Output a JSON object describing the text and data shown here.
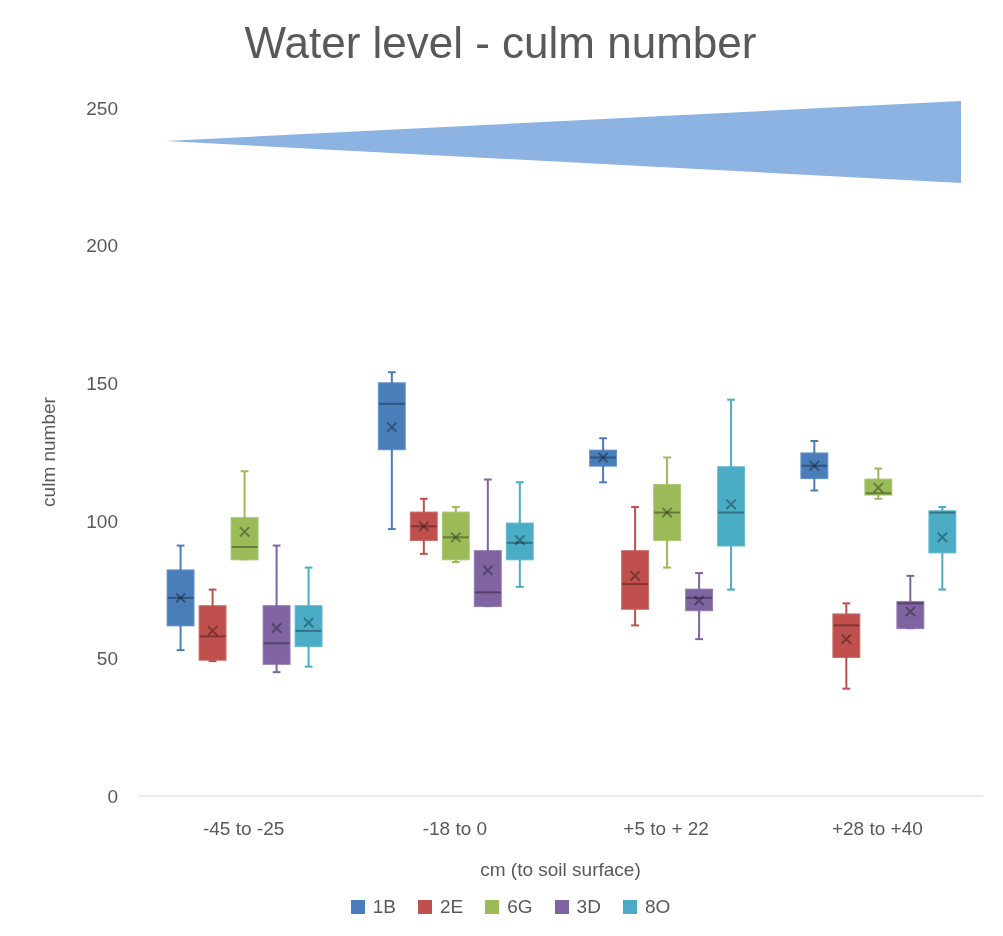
{
  "chart_data": {
    "type": "box",
    "title": "Water level - culm number",
    "xlabel": "cm (to soil surface)",
    "ylabel": "culm number",
    "categories": [
      "-45 to -25",
      "-18 to 0",
      "+5 to + 22",
      "+28 to +40"
    ],
    "ylim": [
      0,
      250
    ],
    "yticks": [
      0,
      50,
      100,
      150,
      200,
      250
    ],
    "legend": "bottom",
    "series": [
      {
        "name": "1B",
        "color": "#4a7ebb",
        "boxes": [
          {
            "low": 53,
            "q1": 62,
            "median": 72,
            "q3": 82,
            "high": 91,
            "mean": 72
          },
          {
            "low": 97,
            "q1": 126,
            "median": 142.5,
            "q3": 150,
            "high": 154,
            "mean": 134
          },
          {
            "low": 114,
            "q1": 120,
            "median": 123,
            "q3": 125.5,
            "high": 130,
            "mean": 123
          },
          {
            "low": 111,
            "q1": 115.5,
            "median": 120,
            "q3": 124.5,
            "high": 129,
            "mean": 120
          }
        ]
      },
      {
        "name": "2E",
        "color": "#c0504d",
        "boxes": [
          {
            "low": 49,
            "q1": 49.5,
            "median": 58,
            "q3": 69,
            "high": 75,
            "mean": 60
          },
          {
            "low": 88,
            "q1": 93,
            "median": 98,
            "q3": 103,
            "high": 108,
            "mean": 98
          },
          {
            "low": 62,
            "q1": 68,
            "median": 77,
            "q3": 89,
            "high": 105,
            "mean": 80
          },
          {
            "low": 39,
            "q1": 50.5,
            "median": 62,
            "q3": 66,
            "high": 70,
            "mean": 57
          }
        ]
      },
      {
        "name": "6G",
        "color": "#9bbb59",
        "boxes": [
          {
            "low": 86,
            "q1": 86,
            "median": 90.5,
            "q3": 101,
            "high": 118,
            "mean": 96
          },
          {
            "low": 85,
            "q1": 86,
            "median": 94,
            "q3": 103,
            "high": 105,
            "mean": 94
          },
          {
            "low": 83,
            "q1": 93,
            "median": 103,
            "q3": 113,
            "high": 123,
            "mean": 103
          },
          {
            "low": 108,
            "q1": 109.5,
            "median": 110,
            "q3": 115,
            "high": 119,
            "mean": 112
          }
        ]
      },
      {
        "name": "3D",
        "color": "#8064a2",
        "boxes": [
          {
            "low": 45,
            "q1": 48,
            "median": 55.5,
            "q3": 69,
            "high": 91,
            "mean": 61
          },
          {
            "low": 69,
            "q1": 69,
            "median": 74,
            "q3": 89,
            "high": 115,
            "mean": 82
          },
          {
            "low": 57,
            "q1": 67.5,
            "median": 72,
            "q3": 75,
            "high": 81,
            "mean": 71
          },
          {
            "low": 61,
            "q1": 61,
            "median": 70,
            "q3": 70.5,
            "high": 80,
            "mean": 67
          }
        ]
      },
      {
        "name": "8O",
        "color": "#4bacc6",
        "boxes": [
          {
            "low": 47,
            "q1": 54.5,
            "median": 60,
            "q3": 69,
            "high": 83,
            "mean": 63
          },
          {
            "low": 76,
            "q1": 86,
            "median": 92,
            "q3": 99,
            "high": 114,
            "mean": 93
          },
          {
            "low": 75,
            "q1": 91,
            "median": 103,
            "q3": 119.5,
            "high": 144,
            "mean": 106
          },
          {
            "low": 75,
            "q1": 88.5,
            "median": 103,
            "q3": 103.5,
            "high": 105,
            "mean": 94
          }
        ]
      }
    ]
  }
}
